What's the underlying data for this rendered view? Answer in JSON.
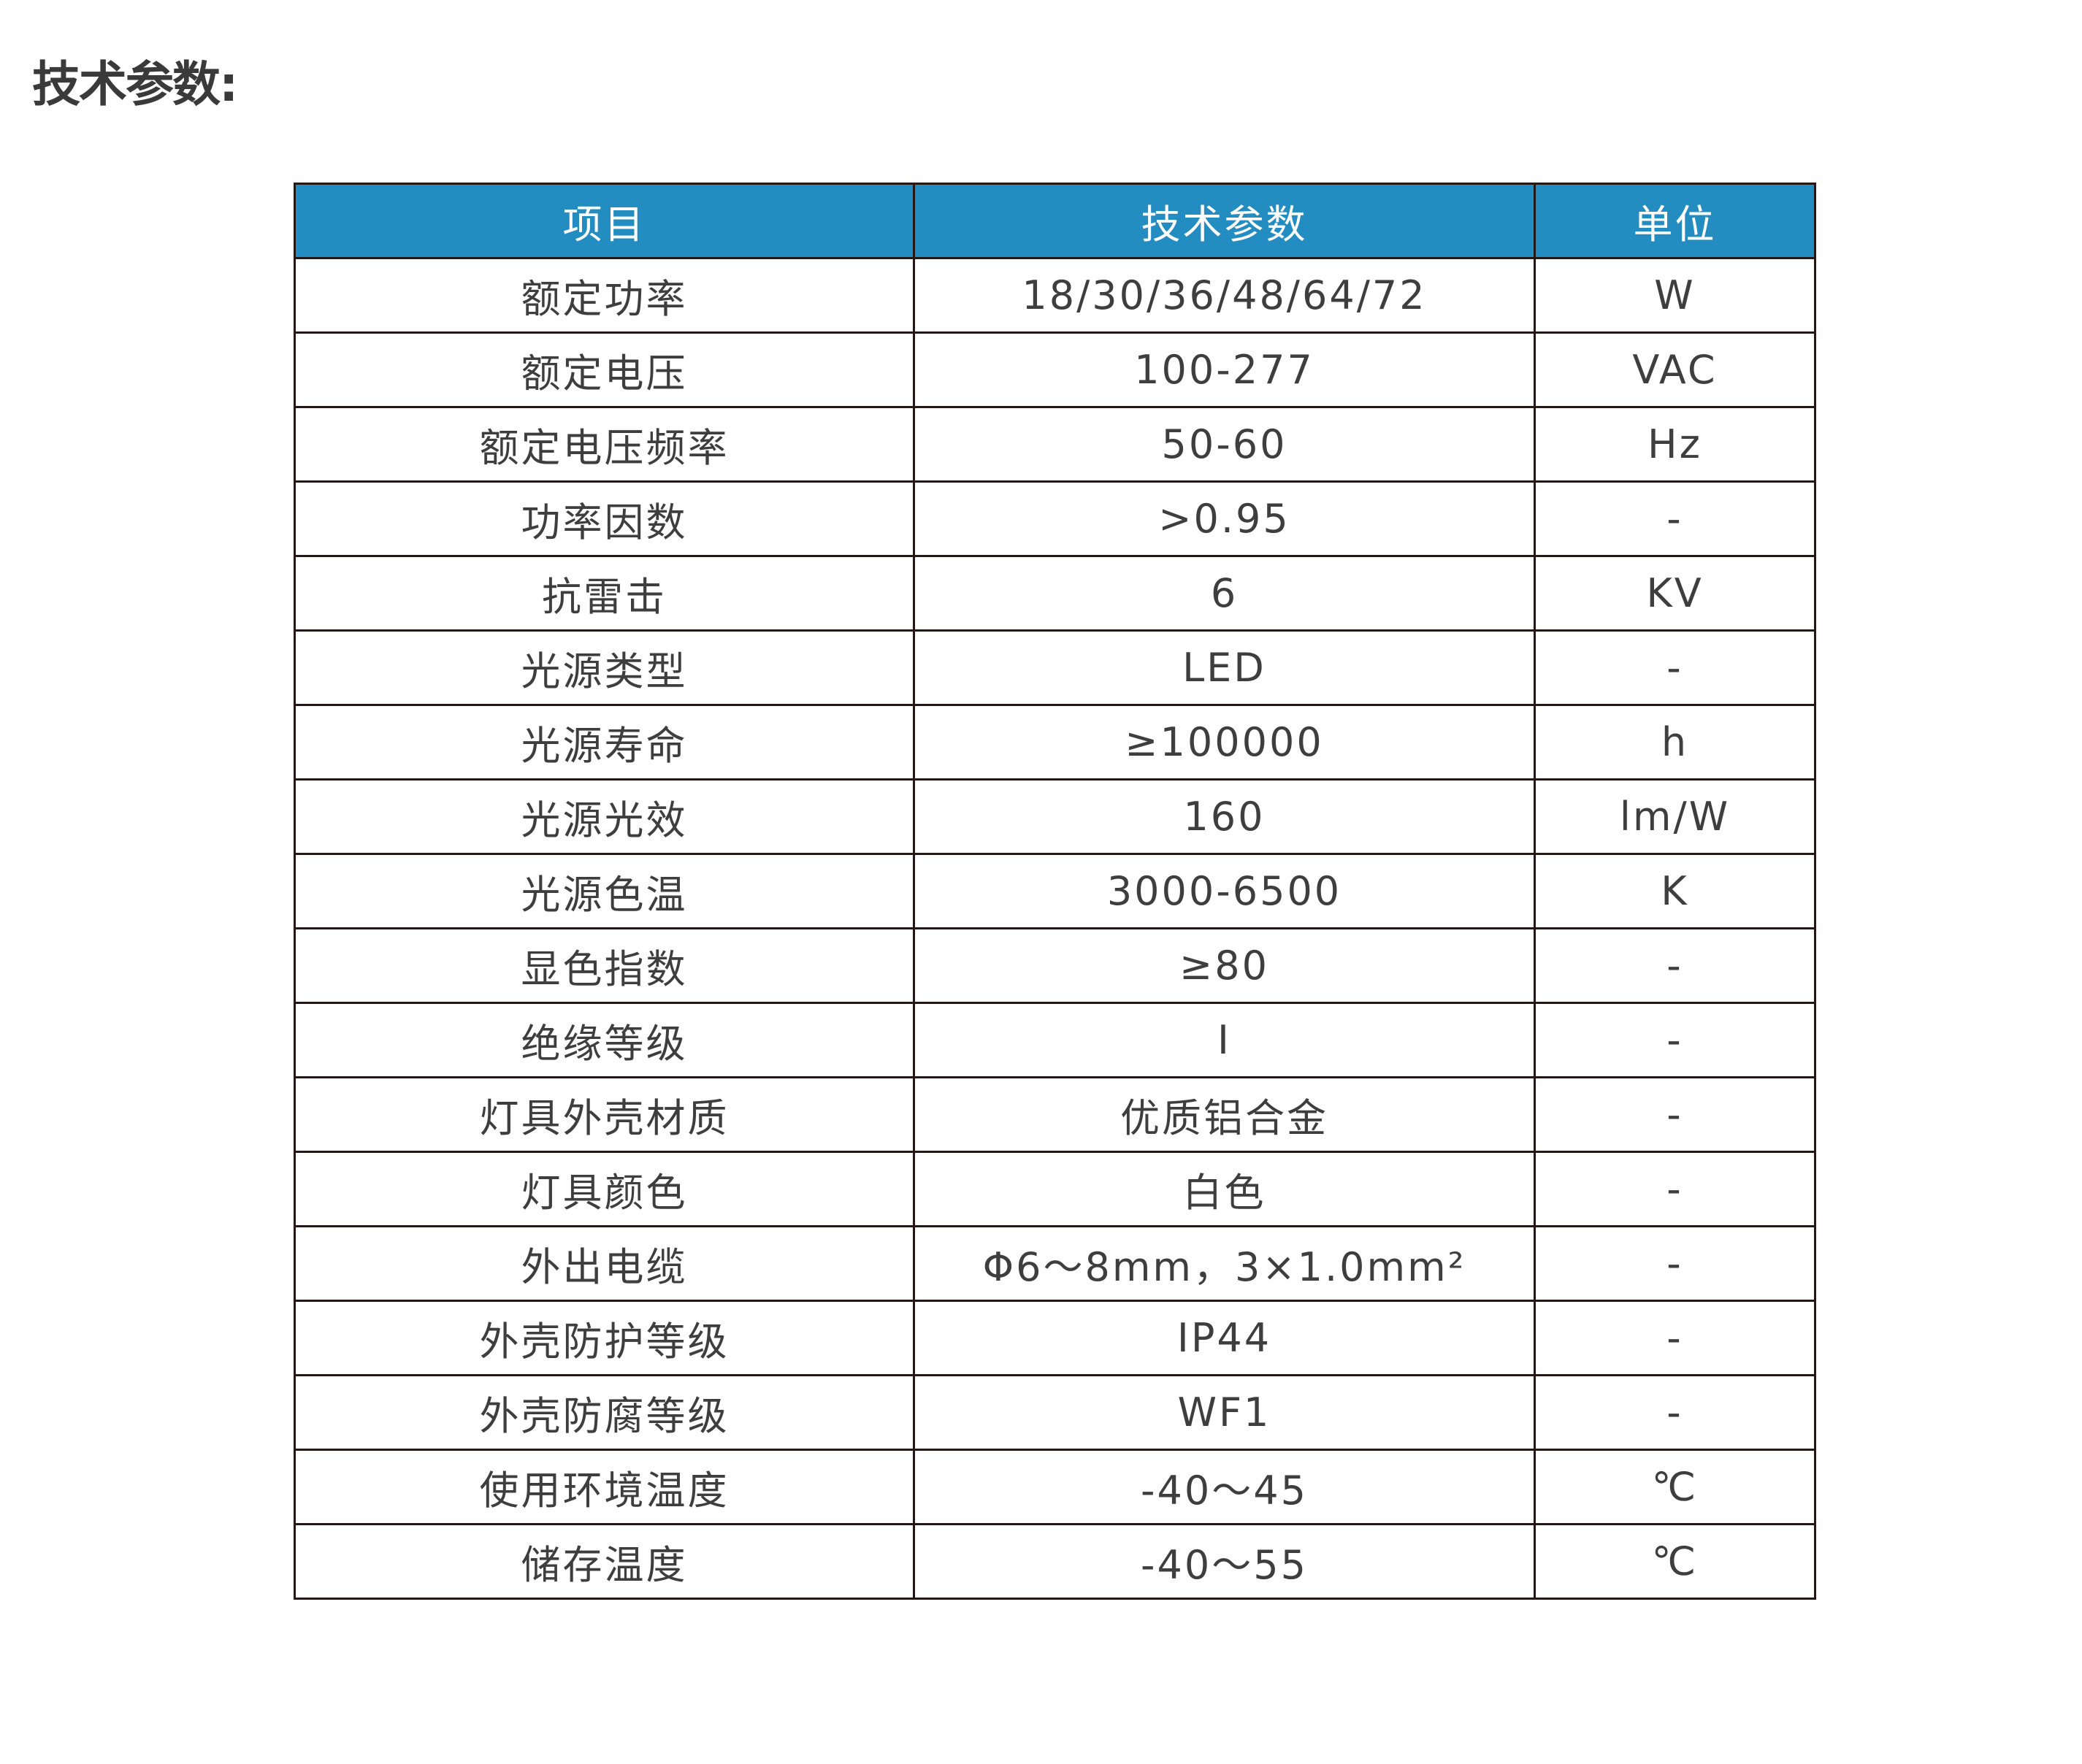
{
  "title": "技术参数:",
  "colors": {
    "header_bg": "#238dc1",
    "header_text": "#ffffff",
    "text": "#3e3e3e",
    "border": "#231815"
  },
  "table": {
    "headers": [
      "项目",
      "技术参数",
      "单位"
    ],
    "rows": [
      [
        "额定功率",
        "18/30/36/48/64/72",
        "W"
      ],
      [
        "额定电压",
        "100-277",
        "VAC"
      ],
      [
        "额定电压频率",
        "50-60",
        "Hz"
      ],
      [
        "功率因数",
        ">0.95",
        "-"
      ],
      [
        "抗雷击",
        "6",
        "KV"
      ],
      [
        "光源类型",
        "LED",
        "-"
      ],
      [
        "光源寿命",
        "≥100000",
        "h"
      ],
      [
        "光源光效",
        "160",
        "lm/W"
      ],
      [
        "光源色温",
        "3000-6500",
        "K"
      ],
      [
        "显色指数",
        "≥80",
        "-"
      ],
      [
        "绝缘等级",
        "I",
        "-"
      ],
      [
        "灯具外壳材质",
        "优质铝合金",
        "-"
      ],
      [
        "灯具颜色",
        "白色",
        "-"
      ],
      [
        "外出电缆",
        "Φ6～8mm，3×1.0mm²",
        "-"
      ],
      [
        "外壳防护等级",
        "IP44",
        "-"
      ],
      [
        "外壳防腐等级",
        "WF1",
        "-"
      ],
      [
        "使用环境温度",
        "-40～45",
        "℃"
      ],
      [
        "储存温度",
        "-40～55",
        "℃"
      ]
    ]
  }
}
